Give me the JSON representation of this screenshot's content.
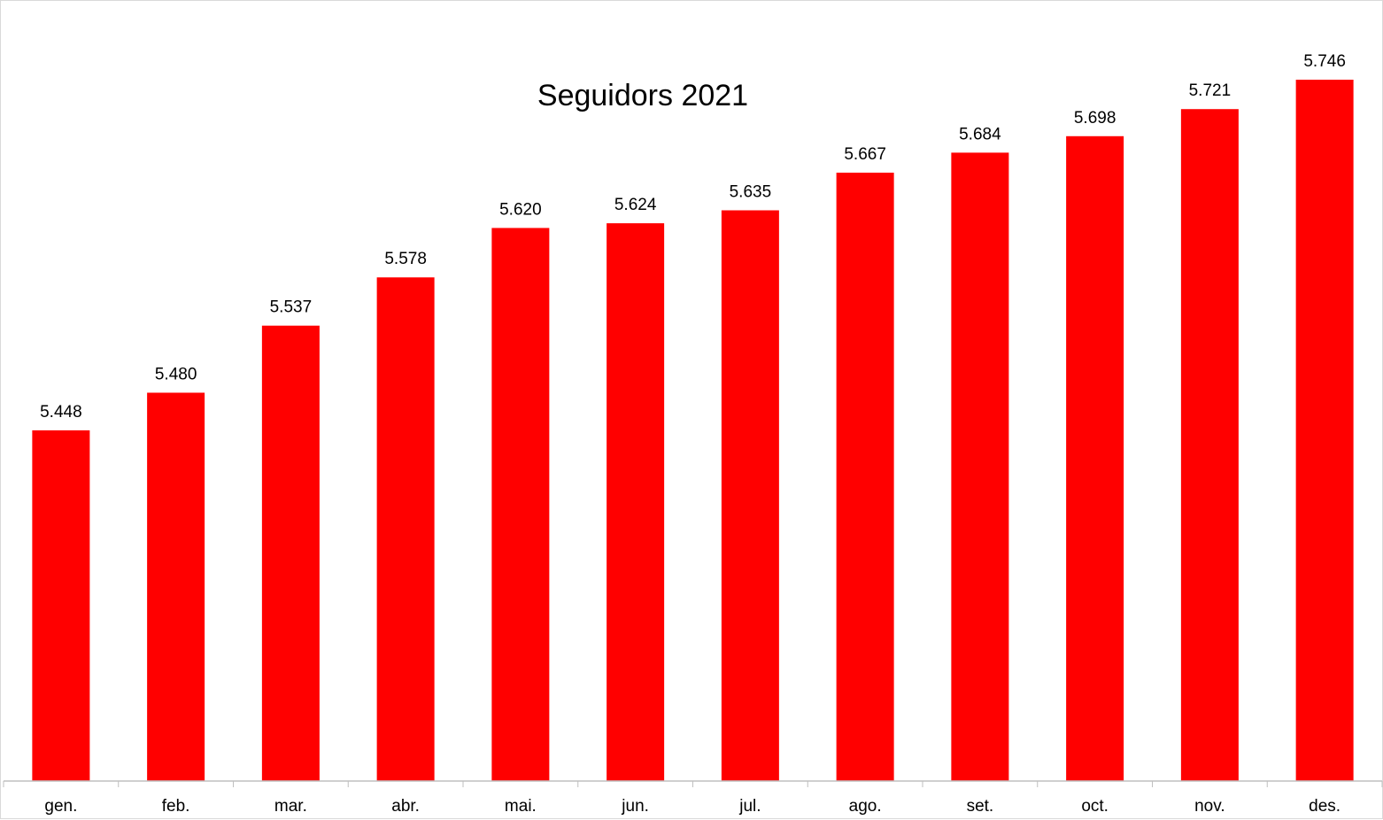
{
  "chart_data": {
    "type": "bar",
    "title": "Seguidors 2021",
    "categories": [
      "gen.",
      "feb.",
      "mar.",
      "abr.",
      "mai.",
      "jun.",
      "jul.",
      "ago.",
      "set.",
      "oct.",
      "nov.",
      "des."
    ],
    "values": [
      5448,
      5480,
      5537,
      5578,
      5620,
      5624,
      5635,
      5667,
      5684,
      5698,
      5721,
      5746
    ],
    "data_labels": [
      "5.448",
      "5.480",
      "5.537",
      "5.578",
      "5.620",
      "5.624",
      "5.635",
      "5.667",
      "5.684",
      "5.698",
      "5.721",
      "5.746"
    ],
    "xlabel": "",
    "ylabel": "",
    "ylim": [
      5150,
      5770
    ],
    "y_axis_visible": false,
    "grid": false,
    "legend": "none",
    "colors": {
      "bar": "#ff0000",
      "axis": "#bfbfbf",
      "text": "#000000"
    }
  }
}
